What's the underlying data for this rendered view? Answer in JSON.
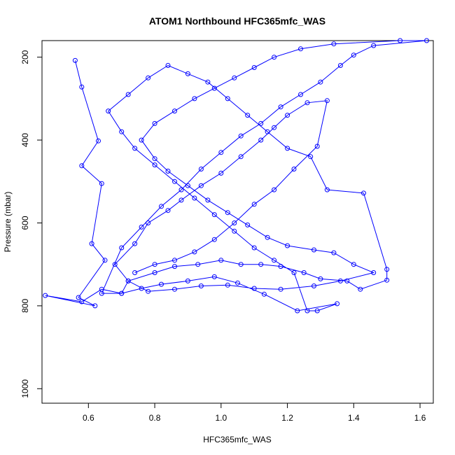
{
  "chart_data": {
    "type": "line",
    "title": "ATOM1 Northbound HFC365mfc_WAS",
    "xlabel": "HFC365mfc_WAS",
    "ylabel": "Pressure (mbar)",
    "x_ticks": [
      0.6,
      0.8,
      1.0,
      1.2,
      1.4,
      1.6
    ],
    "x_tick_labels": [
      "0.6",
      "0.8",
      "1.0",
      "1.2",
      "1.4",
      "1.6"
    ],
    "y_ticks": [
      200,
      400,
      600,
      800,
      1000
    ],
    "y_tick_labels": [
      "200",
      "400",
      "600",
      "800",
      "1000"
    ],
    "xlim": [
      0.46,
      1.64
    ],
    "ylim": [
      1035,
      160
    ],
    "y_reversed": true,
    "grid": false,
    "series_color": "#0000ff",
    "marker": "open-circle",
    "series": [
      {
        "points": [
          [
            0.56,
            208
          ],
          [
            0.58,
            272
          ],
          [
            0.63,
            402
          ],
          [
            0.58,
            462
          ],
          [
            0.64,
            505
          ],
          [
            0.61,
            650
          ],
          [
            0.65,
            690
          ],
          [
            0.57,
            780
          ],
          [
            0.62,
            800
          ],
          [
            0.47,
            775
          ],
          [
            0.58,
            790
          ],
          [
            0.64,
            760
          ],
          [
            0.7,
            770
          ],
          [
            0.72,
            740
          ],
          [
            0.8,
            720
          ],
          [
            0.86,
            705
          ],
          [
            0.93,
            700
          ],
          [
            1.0,
            690
          ],
          [
            1.06,
            700
          ],
          [
            1.12,
            700
          ],
          [
            1.18,
            705
          ],
          [
            1.25,
            720
          ],
          [
            1.3,
            735
          ],
          [
            1.38,
            740
          ],
          [
            1.42,
            760
          ],
          [
            1.5,
            738
          ],
          [
            1.5,
            712
          ],
          [
            1.43,
            528
          ],
          [
            1.32,
            520
          ],
          [
            1.27,
            440
          ],
          [
            1.2,
            420
          ],
          [
            1.14,
            380
          ],
          [
            1.08,
            340
          ],
          [
            1.02,
            300
          ],
          [
            0.96,
            260
          ],
          [
            0.9,
            240
          ],
          [
            0.84,
            220
          ],
          [
            0.78,
            250
          ],
          [
            0.72,
            290
          ],
          [
            0.66,
            330
          ],
          [
            0.7,
            380
          ],
          [
            0.74,
            420
          ],
          [
            0.8,
            460
          ],
          [
            0.86,
            500
          ],
          [
            0.92,
            540
          ],
          [
            0.98,
            580
          ],
          [
            1.04,
            620
          ],
          [
            1.1,
            660
          ],
          [
            1.16,
            690
          ],
          [
            1.22,
            720
          ],
          [
            1.26,
            812
          ],
          [
            1.29,
            812
          ],
          [
            1.35,
            795
          ],
          [
            1.23,
            812
          ],
          [
            1.13,
            772
          ],
          [
            1.05,
            745
          ],
          [
            0.98,
            730
          ],
          [
            0.9,
            740
          ],
          [
            0.82,
            748
          ],
          [
            0.76,
            758
          ],
          [
            0.7,
            770
          ],
          [
            0.64,
            770
          ],
          [
            0.7,
            660
          ],
          [
            0.76,
            610
          ],
          [
            0.82,
            560
          ],
          [
            0.88,
            520
          ],
          [
            0.94,
            470
          ],
          [
            1.0,
            430
          ],
          [
            1.06,
            390
          ],
          [
            1.12,
            360
          ],
          [
            1.18,
            320
          ],
          [
            1.24,
            290
          ],
          [
            1.3,
            260
          ],
          [
            1.36,
            220
          ],
          [
            1.4,
            195
          ],
          [
            1.46,
            172
          ],
          [
            1.62,
            160
          ],
          [
            1.54,
            160
          ],
          [
            1.34,
            168
          ],
          [
            1.24,
            180
          ],
          [
            1.16,
            200
          ],
          [
            1.1,
            225
          ],
          [
            1.04,
            250
          ],
          [
            0.98,
            275
          ],
          [
            0.92,
            300
          ],
          [
            0.86,
            330
          ],
          [
            0.8,
            360
          ],
          [
            0.76,
            400
          ],
          [
            0.8,
            445
          ],
          [
            0.84,
            475
          ],
          [
            0.9,
            510
          ],
          [
            0.96,
            545
          ],
          [
            1.02,
            575
          ],
          [
            1.08,
            605
          ],
          [
            1.14,
            635
          ],
          [
            1.2,
            655
          ],
          [
            1.28,
            665
          ],
          [
            1.34,
            672
          ],
          [
            1.4,
            700
          ],
          [
            1.46,
            720
          ],
          [
            1.36,
            740
          ],
          [
            1.28,
            752
          ],
          [
            1.18,
            760
          ],
          [
            1.1,
            758
          ],
          [
            1.02,
            750
          ],
          [
            0.94,
            752
          ],
          [
            0.86,
            760
          ],
          [
            0.78,
            765
          ],
          [
            0.72,
            740
          ],
          [
            0.68,
            700
          ],
          [
            0.74,
            650
          ],
          [
            0.78,
            600
          ],
          [
            0.84,
            570
          ],
          [
            0.88,
            545
          ],
          [
            0.94,
            510
          ],
          [
            1.0,
            480
          ],
          [
            1.06,
            440
          ],
          [
            1.12,
            400
          ],
          [
            1.16,
            370
          ],
          [
            1.2,
            340
          ],
          [
            1.26,
            310
          ],
          [
            1.32,
            305
          ],
          [
            1.29,
            415
          ],
          [
            1.22,
            470
          ],
          [
            1.16,
            520
          ],
          [
            1.1,
            555
          ],
          [
            1.04,
            600
          ],
          [
            0.98,
            640
          ],
          [
            0.92,
            670
          ],
          [
            0.86,
            690
          ],
          [
            0.8,
            700
          ],
          [
            0.74,
            720
          ]
        ]
      }
    ]
  }
}
